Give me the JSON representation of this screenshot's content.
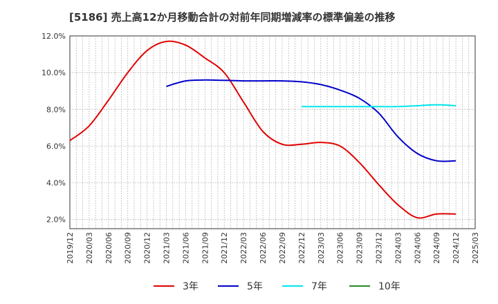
{
  "chart_data": {
    "type": "line",
    "title": "[5186]  売上高12か月移動合計の対前年同期増減率の標準偏差の推移",
    "xlabel": "",
    "ylabel": "",
    "ylim": [
      1.5,
      12.0
    ],
    "yticks": [
      2.0,
      4.0,
      6.0,
      8.0,
      10.0,
      12.0
    ],
    "ytick_labels": [
      "2.0%",
      "4.0%",
      "6.0%",
      "8.0%",
      "10.0%",
      "12.0%"
    ],
    "xlim": [
      "2019/12",
      "2025/03"
    ],
    "xtick_labels": [
      "2019/12",
      "2020/03",
      "2020/06",
      "2020/09",
      "2020/12",
      "2021/03",
      "2021/06",
      "2021/09",
      "2021/12",
      "2022/03",
      "2022/06",
      "2022/09",
      "2022/12",
      "2023/03",
      "2023/06",
      "2023/09",
      "2023/12",
      "2024/03",
      "2024/06",
      "2024/09",
      "2024/12",
      "2025/03"
    ],
    "grid": true,
    "legend_position": "bottom",
    "series": [
      {
        "name": "3年",
        "color": "#e00000",
        "x": [
          "2019/12",
          "2020/03",
          "2020/06",
          "2020/09",
          "2020/12",
          "2021/03",
          "2021/06",
          "2021/09",
          "2021/12",
          "2022/03",
          "2022/06",
          "2022/09",
          "2022/12",
          "2023/03",
          "2023/06",
          "2023/09",
          "2023/12",
          "2024/03",
          "2024/06",
          "2024/09",
          "2024/12"
        ],
        "values": [
          6.3,
          7.1,
          8.5,
          10.0,
          11.2,
          11.7,
          11.5,
          10.8,
          10.0,
          8.4,
          6.8,
          6.1,
          6.1,
          6.2,
          6.0,
          5.1,
          3.9,
          2.8,
          2.1,
          2.3,
          2.3
        ]
      },
      {
        "name": "5年",
        "color": "#0000cc",
        "x": [
          "2021/03",
          "2021/06",
          "2021/09",
          "2021/12",
          "2022/03",
          "2022/06",
          "2022/09",
          "2022/12",
          "2023/03",
          "2023/06",
          "2023/09",
          "2023/12",
          "2024/03",
          "2024/06",
          "2024/09",
          "2024/12"
        ],
        "values": [
          9.25,
          9.55,
          9.6,
          9.58,
          9.55,
          9.55,
          9.55,
          9.5,
          9.35,
          9.05,
          8.6,
          7.8,
          6.5,
          5.6,
          5.2,
          5.2
        ]
      },
      {
        "name": "7年",
        "color": "#00e5ee",
        "x": [
          "2022/12",
          "2023/03",
          "2023/06",
          "2023/09",
          "2023/12",
          "2024/03",
          "2024/06",
          "2024/09",
          "2024/12"
        ],
        "values": [
          8.15,
          8.15,
          8.15,
          8.15,
          8.15,
          8.15,
          8.2,
          8.25,
          8.2
        ]
      },
      {
        "name": "10年",
        "color": "#228b22",
        "x": [],
        "values": []
      }
    ]
  }
}
